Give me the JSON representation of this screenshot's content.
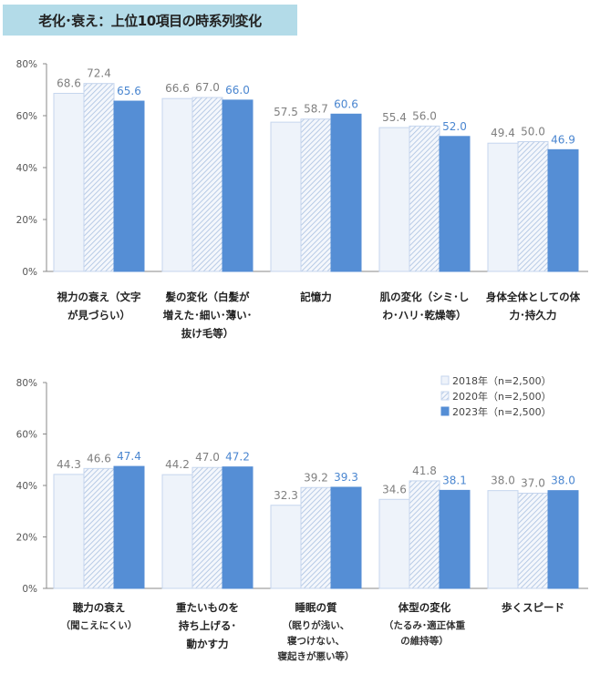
{
  "title": "老化･衰え：上位10項目の時系列変化",
  "colors": {
    "2018": "#eef3fa",
    "2018_border": "#c6d6ee",
    "2020_hatch": "#9fb8dc",
    "2023": "#558ed5",
    "label_gray": "#7f7f7f",
    "label_2023": "#4a86d0"
  },
  "chart_data": [
    {
      "type": "bar",
      "ylim": [
        0,
        80
      ],
      "yticks": [
        "0%",
        "20%",
        "40%",
        "60%",
        "80%"
      ],
      "grid": false,
      "categories": [
        {
          "lines": [
            "視力の衰え（文字",
            "が見づらい）"
          ],
          "sub": []
        },
        {
          "lines": [
            "髪の変化（白髪が",
            "増えた･細い･薄い･",
            "抜け毛等）"
          ],
          "sub": []
        },
        {
          "lines": [
            "記憶力"
          ],
          "sub": []
        },
        {
          "lines": [
            "肌の変化（シミ･し",
            "わ･ハリ･乾燥等）"
          ],
          "sub": []
        },
        {
          "lines": [
            "身体全体としての体",
            "力･持久力"
          ],
          "sub": []
        }
      ],
      "series": [
        {
          "name": "2018年（n=2,500）",
          "values": [
            "68.6",
            "66.6",
            "57.5",
            "55.4",
            "49.4"
          ]
        },
        {
          "name": "2020年（n=2,500）",
          "values": [
            "72.4",
            "67.0",
            "58.7",
            "56.0",
            "50.0"
          ]
        },
        {
          "name": "2023年（n=2,500）",
          "values": [
            "65.6",
            "66.0",
            "60.6",
            "52.0",
            "46.9"
          ]
        }
      ]
    },
    {
      "type": "bar",
      "ylim": [
        0,
        80
      ],
      "yticks": [
        "0%",
        "20%",
        "40%",
        "60%",
        "80%"
      ],
      "grid": false,
      "legend": "top-right",
      "categories": [
        {
          "lines": [
            "聴力の衰え"
          ],
          "sub": [
            "（聞こえにくい）"
          ]
        },
        {
          "lines": [
            "重たいものを",
            "持ち上げる･",
            "動かす力"
          ],
          "sub": []
        },
        {
          "lines": [
            "睡眠の質"
          ],
          "sub": [
            "（眠りが浅い、",
            "寝つけない、",
            "寝起きが悪い等）"
          ]
        },
        {
          "lines": [
            "体型の変化"
          ],
          "sub": [
            "（たるみ･適正体重",
            "の維持等）"
          ]
        },
        {
          "lines": [
            "歩くスピード"
          ],
          "sub": []
        }
      ],
      "series": [
        {
          "name": "2018年（n=2,500）",
          "values": [
            "44.3",
            "44.2",
            "32.3",
            "34.6",
            "38.0"
          ]
        },
        {
          "name": "2020年（n=2,500）",
          "values": [
            "46.6",
            "47.0",
            "39.2",
            "41.8",
            "37.0"
          ]
        },
        {
          "name": "2023年（n=2,500）",
          "values": [
            "47.4",
            "47.2",
            "39.3",
            "38.1",
            "38.0"
          ]
        }
      ]
    }
  ]
}
